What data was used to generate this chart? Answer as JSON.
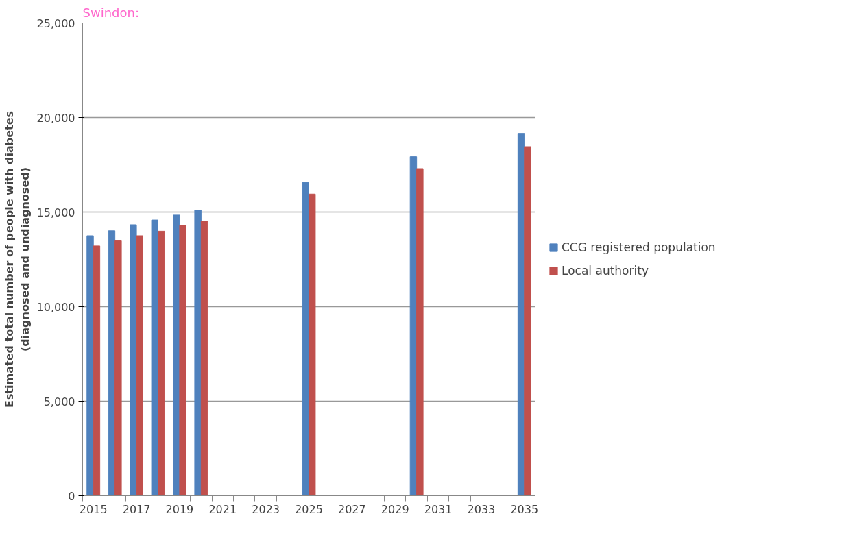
{
  "chart_data": {
    "type": "bar",
    "title": "Swindon:",
    "ylabel": "Estimated total number of people with diabetes\n(diagnosed and undiagnosed)",
    "categories": [
      "2015",
      null,
      "2017",
      null,
      "2019",
      null,
      "2021",
      null,
      "2023",
      null,
      "2025",
      null,
      "2027",
      null,
      "2029",
      null,
      "2031",
      null,
      "2033",
      null,
      "2035"
    ],
    "series": [
      {
        "name": "CCG registered population",
        "color": "#4f81bd",
        "values": [
          13750,
          14010,
          14330,
          14580,
          14840,
          15100,
          null,
          null,
          null,
          null,
          16560,
          null,
          null,
          null,
          null,
          17930,
          null,
          null,
          null,
          null,
          19160
        ]
      },
      {
        "name": "Local authority",
        "color": "#c0504d",
        "values": [
          13210,
          13480,
          13750,
          13990,
          14300,
          14510,
          null,
          null,
          null,
          null,
          15950,
          null,
          null,
          null,
          null,
          17300,
          null,
          null,
          null,
          null,
          18460
        ]
      }
    ],
    "ylim": [
      0,
      25000
    ],
    "yticks": [
      0,
      {
        "value": 5000,
        "label": "5,000"
      },
      {
        "value": 10000,
        "label": "10,000"
      },
      {
        "value": 15000,
        "label": "15,000"
      },
      {
        "value": 20000,
        "label": "20,000"
      },
      {
        "value": 25000,
        "label": "25,000"
      }
    ],
    "grid": "y",
    "legend": "right"
  }
}
